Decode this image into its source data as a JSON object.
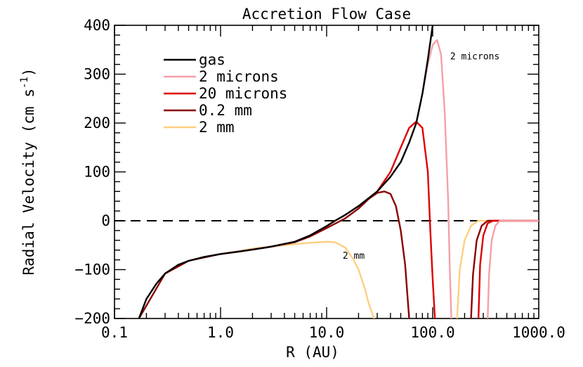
{
  "chart_data": {
    "type": "line",
    "title": "Accretion Flow Case",
    "xlabel": "R (AU)",
    "ylabel_main": "Radial Velocity (cm s",
    "ylabel_exp": "-1",
    "ylabel_close": ")",
    "x_scale": "log",
    "xlim": [
      0.1,
      1000.0
    ],
    "ylim": [
      -200,
      400
    ],
    "x_ticks": [
      {
        "value": 0.1,
        "label": "0.1"
      },
      {
        "value": 1.0,
        "label": "1.0"
      },
      {
        "value": 10.0,
        "label": "10.0"
      },
      {
        "value": 100.0,
        "label": "100.0"
      },
      {
        "value": 1000.0,
        "label": "1000.0"
      }
    ],
    "y_ticks": [
      {
        "value": -200,
        "label": "−200"
      },
      {
        "value": -100,
        "label": "−100"
      },
      {
        "value": 0,
        "label": "0"
      },
      {
        "value": 100,
        "label": "100"
      },
      {
        "value": 200,
        "label": "200"
      },
      {
        "value": 300,
        "label": "300"
      },
      {
        "value": 400,
        "label": "400"
      }
    ],
    "y_minor_step": 20,
    "reference_line": {
      "y": 0,
      "style": "dashed"
    },
    "legend_position": "upper-left",
    "series": [
      {
        "name": "gas",
        "color": "#000000",
        "segments": [
          [
            [
              0.17,
              -200
            ],
            [
              0.2,
              -160
            ],
            [
              0.25,
              -128
            ],
            [
              0.3,
              -108
            ],
            [
              0.4,
              -90
            ],
            [
              0.5,
              -82
            ],
            [
              0.7,
              -74
            ],
            [
              1.0,
              -68
            ],
            [
              1.5,
              -63
            ],
            [
              2.0,
              -59
            ],
            [
              3.0,
              -53
            ],
            [
              5.0,
              -43
            ],
            [
              7.0,
              -30
            ],
            [
              10.0,
              -11
            ],
            [
              12.0,
              0
            ],
            [
              15.0,
              12
            ],
            [
              20.0,
              30
            ],
            [
              30.0,
              60
            ],
            [
              40.0,
              90
            ],
            [
              50.0,
              120
            ],
            [
              60.0,
              160
            ],
            [
              70.0,
              200
            ],
            [
              80.0,
              260
            ],
            [
              90.0,
              330
            ],
            [
              100.0,
              400
            ]
          ]
        ]
      },
      {
        "name": "2 microns",
        "color": "#f4a0a8",
        "segments": [
          [
            [
              1.0,
              -68
            ],
            [
              3.0,
              -53
            ],
            [
              5.0,
              -43
            ],
            [
              7.0,
              -30
            ],
            [
              10.0,
              -11
            ],
            [
              12.0,
              0
            ],
            [
              15.0,
              12
            ],
            [
              20.0,
              30
            ],
            [
              30.0,
              60
            ],
            [
              40.0,
              90
            ],
            [
              50.0,
              120
            ],
            [
              60.0,
              160
            ],
            [
              70.0,
              200
            ],
            [
              80.0,
              260
            ],
            [
              90.0,
              320
            ],
            [
              100.0,
              360
            ],
            [
              110.0,
              370
            ],
            [
              120.0,
              340
            ],
            [
              130.0,
              220
            ],
            [
              140.0,
              40
            ],
            [
              145.0,
              -100
            ],
            [
              150.0,
              -200
            ]
          ],
          [
            [
              330.0,
              -200
            ],
            [
              340.0,
              -110
            ],
            [
              360.0,
              -40
            ],
            [
              390.0,
              -10
            ],
            [
              430.0,
              0
            ],
            [
              1000.0,
              0
            ]
          ]
        ]
      },
      {
        "name": "20 microns",
        "color": "#dd0000",
        "segments": [
          [
            [
              1.0,
              -68
            ],
            [
              3.0,
              -53
            ],
            [
              5.0,
              -43
            ],
            [
              7.0,
              -30
            ],
            [
              10.0,
              -11
            ],
            [
              12.0,
              0
            ],
            [
              15.0,
              12
            ],
            [
              20.0,
              30
            ],
            [
              30.0,
              60
            ],
            [
              40.0,
              100
            ],
            [
              50.0,
              150
            ],
            [
              60.0,
              190
            ],
            [
              70.0,
              203
            ],
            [
              80.0,
              190
            ],
            [
              90.0,
              100
            ],
            [
              95.0,
              -20
            ],
            [
              100.0,
              -120
            ],
            [
              105.0,
              -200
            ]
          ],
          [
            [
              270.0,
              -200
            ],
            [
              280.0,
              -90
            ],
            [
              300.0,
              -30
            ],
            [
              330.0,
              -5
            ],
            [
              370.0,
              0
            ],
            [
              1000.0,
              0
            ]
          ]
        ]
      },
      {
        "name": "0.2 mm",
        "color": "#8b0000",
        "segments": [
          [
            [
              0.17,
              -200
            ],
            [
              0.3,
              -108
            ],
            [
              0.5,
              -82
            ],
            [
              1.0,
              -68
            ],
            [
              2.0,
              -59
            ],
            [
              3.0,
              -53
            ],
            [
              5.0,
              -44
            ],
            [
              7.0,
              -32
            ],
            [
              10.0,
              -15
            ],
            [
              15.0,
              5
            ],
            [
              20.0,
              25
            ],
            [
              25.0,
              45
            ],
            [
              30.0,
              57
            ],
            [
              35.0,
              60
            ],
            [
              40.0,
              55
            ],
            [
              45.0,
              30
            ],
            [
              50.0,
              -20
            ],
            [
              55.0,
              -90
            ],
            [
              60.0,
              -200
            ]
          ],
          [
            [
              230.0,
              -200
            ],
            [
              240.0,
              -110
            ],
            [
              260.0,
              -40
            ],
            [
              290.0,
              -10
            ],
            [
              330.0,
              0
            ],
            [
              1000.0,
              0
            ]
          ]
        ]
      },
      {
        "name": "2 mm",
        "color": "#fdcf7f",
        "segments": [
          [
            [
              0.3,
              -108
            ],
            [
              0.5,
              -82
            ],
            [
              0.7,
              -74
            ],
            [
              1.0,
              -68
            ],
            [
              1.5,
              -62
            ],
            [
              2.0,
              -57
            ],
            [
              3.0,
              -53
            ],
            [
              5.0,
              -48
            ],
            [
              7.0,
              -45
            ],
            [
              10.0,
              -43
            ],
            [
              12.0,
              -44
            ],
            [
              15.0,
              -55
            ],
            [
              18.0,
              -80
            ],
            [
              20.0,
              -100
            ],
            [
              23.0,
              -140
            ],
            [
              25.0,
              -170
            ],
            [
              28.0,
              -200
            ]
          ],
          [
            [
              170.0,
              -200
            ],
            [
              180.0,
              -100
            ],
            [
              200.0,
              -40
            ],
            [
              230.0,
              -10
            ],
            [
              270.0,
              0
            ],
            [
              1000.0,
              0
            ]
          ]
        ]
      }
    ],
    "annotations": [
      {
        "text": "2 microns",
        "x": 250.0,
        "y": 330
      },
      {
        "text": "2 mm",
        "x": 18.0,
        "y": -78
      }
    ]
  }
}
